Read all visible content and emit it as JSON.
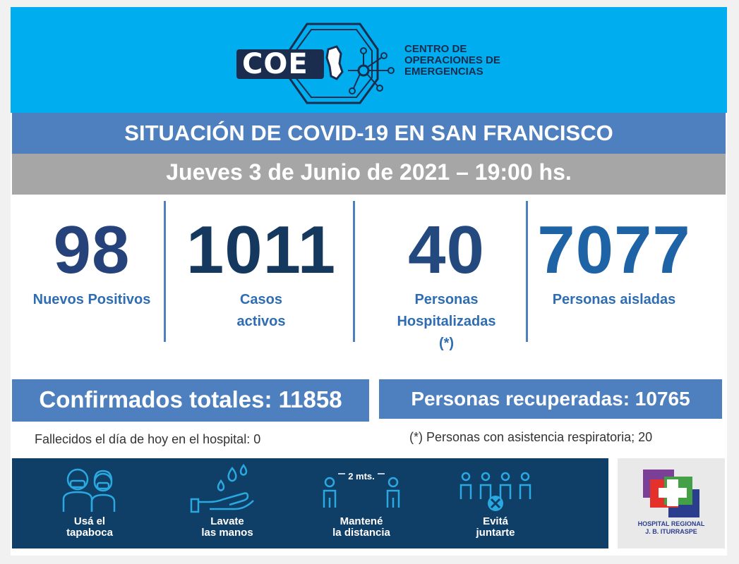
{
  "logo": {
    "brand": "COE",
    "subtitle": [
      "CENTRO DE",
      "OPERACIONES DE",
      "EMERGENCIAS"
    ]
  },
  "title": "SITUACIÓN DE COVID-19 EN SAN FRANCISCO",
  "date": "Jueves 3 de Junio de 2021 – 19:00 hs.",
  "stats": [
    {
      "value": "98",
      "label": [
        "Nuevos Positivos"
      ]
    },
    {
      "value": "1011",
      "label": [
        "Casos",
        "activos"
      ]
    },
    {
      "value": "40",
      "label": [
        "Personas",
        "Hospitalizadas",
        "(*)"
      ]
    },
    {
      "value": "7077",
      "label": [
        "Personas aisladas"
      ]
    }
  ],
  "totals": {
    "confirmados": "Confirmados totales: 11858",
    "recuperadas": "Personas recuperadas: 10765"
  },
  "notes": {
    "fallecidos": "Fallecidos el día de hoy en el hospital: 0",
    "asistencia": "(*) Personas con asistencia respiratoria; 20"
  },
  "tips": [
    {
      "icon": "mask-people-icon",
      "label": [
        "Usá el",
        "tapaboca"
      ]
    },
    {
      "icon": "hand-wash-icon",
      "label": [
        "Lavate",
        "las manos"
      ]
    },
    {
      "icon": "distance-icon",
      "label": [
        "Mantené",
        "la distancia"
      ],
      "distance": "2 mts."
    },
    {
      "icon": "no-gathering-icon",
      "label": [
        "Evitá",
        "juntarte"
      ]
    }
  ],
  "hospital": {
    "name": [
      "HOSPITAL REGIONAL",
      "J. B. ITURRASPE"
    ]
  },
  "colors": {
    "header": "#00aeef",
    "band": "#4e80bf",
    "date_band": "#a6a6a6",
    "bottom": "#0f3e67",
    "tip_icon": "#2aa9e0"
  }
}
